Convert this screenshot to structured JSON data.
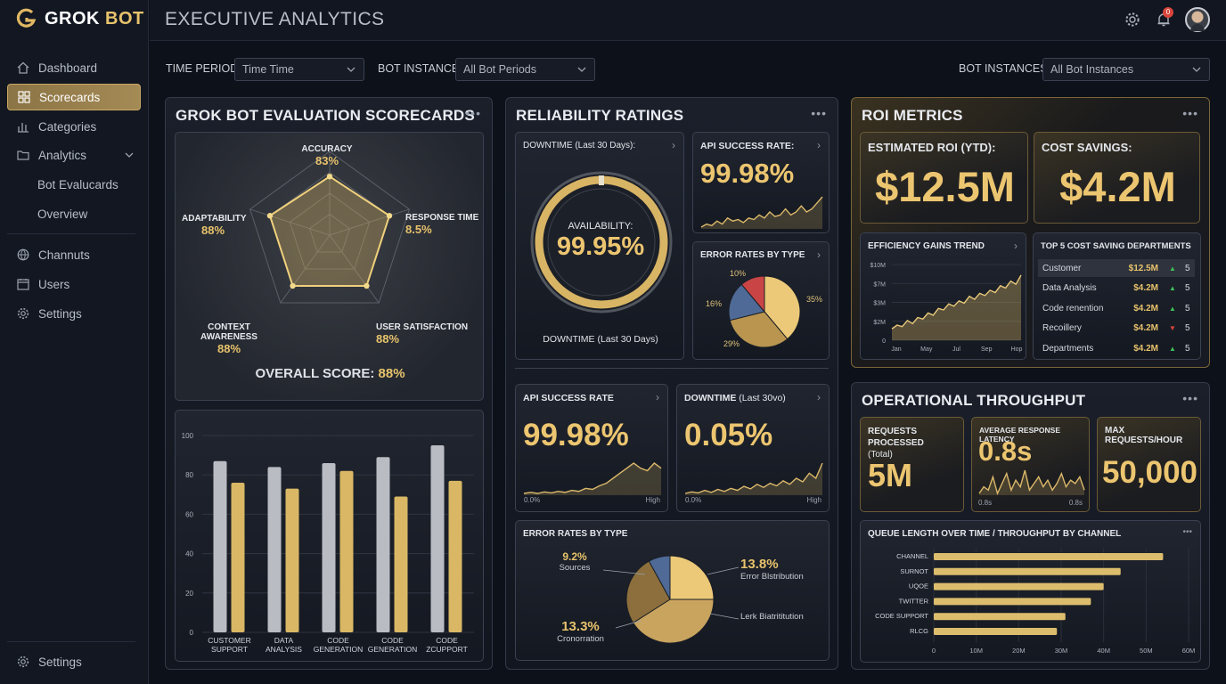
{
  "app": {
    "logo_prefix": "GROK",
    "logo_suffix": "BOT",
    "page_title": "EXECUTIVE ANALYTICS",
    "notification_count": "0"
  },
  "sidebar": {
    "items": [
      {
        "label": "Dashboard",
        "icon": "home-icon"
      },
      {
        "label": "Scorecards",
        "icon": "grid-icon",
        "active": true
      },
      {
        "label": "Categories",
        "icon": "bar-chart-icon"
      },
      {
        "label": "Analytics",
        "icon": "folder-icon"
      },
      {
        "label": "Bot Evalucards",
        "sub": true
      },
      {
        "label": "Overview",
        "sub": true
      },
      {
        "label": "Channuts",
        "icon": "globe-icon"
      },
      {
        "label": "Users",
        "icon": "calendar-icon"
      },
      {
        "label": "Settings",
        "icon": "gear-icon"
      }
    ],
    "bottom_label": "Settings"
  },
  "filters": {
    "time_period_label": "TIME PERIOD",
    "time_period_value": "Time Time",
    "bot_instance_label": "BOT INSTANCE",
    "bot_instance_value": "All Bot Periods",
    "bot_instances_label": "BOT INSTANCES",
    "bot_instances_value": "All Bot Instances"
  },
  "scorecard": {
    "title": "GROK BOT EVALUATION SCORECARDS",
    "radar": [
      {
        "label": "ACCURACY",
        "value": "83%"
      },
      {
        "label": "RESPONSE TIME",
        "value": "8.5%"
      },
      {
        "label": "USER SATISFACTION",
        "value": "88%"
      },
      {
        "label": "CONTEXT AWARENESS",
        "value": "88%"
      },
      {
        "label": "ADAPTABILITY",
        "value": "88%"
      }
    ],
    "radar_levels": [
      0.7,
      0.75,
      0.75,
      0.75,
      0.75
    ],
    "overall_label": "OVERALL SCORE:",
    "overall_value": "88%"
  },
  "chart_data": {
    "type": "bar",
    "categories": [
      "CUSTOMER SUPPORT",
      "DATA ANALYSIS",
      "CODE GENERATION",
      "CODE GENERATION",
      "CODE ZCUPPORT"
    ],
    "series": [
      {
        "values": [
          87,
          84,
          86,
          89,
          95
        ]
      },
      {
        "values": [
          76,
          73,
          82,
          69,
          77
        ]
      }
    ],
    "ylim": [
      0,
      100
    ],
    "yticks": [
      0,
      20,
      40,
      60,
      80,
      100
    ],
    "colors": [
      "#b9bcc2",
      "#d9b765"
    ]
  },
  "reliability": {
    "title": "RELIABILITY RATINGS",
    "downtime_label": "DOWNTIME (Last 30 Days):",
    "availability_label": "AVAILABILITY:",
    "availability_value": "99.95%",
    "downtime_footer": "DOWNTIME (Last 30 Days)",
    "api_label": "API SUCCESS RATE:",
    "api_value": "99.98%",
    "error_label": "ERROR RATES BY TYPE",
    "error_pie": [
      {
        "label": "10%",
        "value": 10,
        "color": "#c94545"
      },
      {
        "label": "35%",
        "value": 35,
        "color": "#ecc978"
      },
      {
        "label": "29%",
        "value": 29,
        "color": "#b99550"
      },
      {
        "label": "16%",
        "value": 16,
        "color": "#4f6a96"
      }
    ],
    "api2_label": "API SUCCESS RATE",
    "api2_value": "99.98%",
    "api2_axis_min": "0.0%",
    "api2_axis_max": "High",
    "downtime2_label": "DOWNTIME",
    "downtime2_suffix": "(Last 30vo)",
    "downtime2_value": "0.05%",
    "downtime2_axis_min": "0.0%",
    "downtime2_axis_max": "High",
    "error2_label": "ERROR RATES BY TYPE",
    "error2_pie": [
      {
        "value": 25,
        "color": "#ecc978"
      },
      {
        "value": 41,
        "color": "#c9a45e"
      },
      {
        "value": 26,
        "color": "#8c6f3c"
      },
      {
        "value": 8,
        "color": "#4f6a96"
      }
    ],
    "error2_callouts": [
      {
        "value": "9.2%",
        "label": "Sources"
      },
      {
        "value": "13.8%",
        "label": "Error Blstribution"
      },
      {
        "value": "",
        "label": "Lerk Biatrititution"
      },
      {
        "value": "13.3%",
        "label": "Cronorration"
      }
    ]
  },
  "roi": {
    "title": "ROI METRICS",
    "roi_label": "ESTIMATED ROI (YTD):",
    "roi_value": "$12.5M",
    "savings_label": "COST SAVINGS:",
    "savings_value": "$4.2M",
    "trend_label": "EFFICIENCY GAINS TREND",
    "trend_y": [
      "$10M",
      "$7M",
      "$3M",
      "$2M",
      "0"
    ],
    "trend_x": [
      "Jan",
      "May",
      "Jul",
      "Sep",
      "Hop"
    ],
    "trend_values": [
      1.5,
      2,
      1.8,
      2.6,
      2.2,
      3,
      2.8,
      3.6,
      3.3,
      4.2,
      4,
      4.8,
      4.5,
      5.2,
      4.9,
      5.8,
      5.4,
      6.2,
      5.9,
      6.6,
      6.3,
      7.2,
      6.9,
      7.8,
      7.4,
      8.6
    ],
    "top5_label": "TOP 5 COST SAVING DEPARTMENTS",
    "top5": [
      {
        "name": "Customer",
        "value": "$12.5M",
        "trend": "up",
        "rank": "5"
      },
      {
        "name": "Data Analysis",
        "value": "$4.2M",
        "trend": "up",
        "rank": "5"
      },
      {
        "name": "Code renention",
        "value": "$4.2M",
        "trend": "up",
        "rank": "5"
      },
      {
        "name": "Recoillery",
        "value": "$4.2M",
        "trend": "down",
        "rank": "5"
      },
      {
        "name": "Departments",
        "value": "$4.2M",
        "trend": "up",
        "rank": "5"
      }
    ]
  },
  "throughput": {
    "title": "OPERATIONAL THROUGHPUT",
    "requests_label": "REQUESTS PROCESSED",
    "requests_sub": "(Total)",
    "requests_value": "5M",
    "latency_label": "AVERAGE RESPONSE LATENCY",
    "latency_value": "0.8s",
    "latency_axis_min": "0.8s",
    "latency_axis_max": "0.8s",
    "max_label": "MAX REQUESTS/HOUR",
    "max_value": "50,000",
    "queue_label": "QUEUE LENGTH OVER TIME / THROUGHPUT BY CHANNEL",
    "channels": [
      {
        "name": "CHANNEL",
        "value": 54
      },
      {
        "name": "SURNOT",
        "value": 44
      },
      {
        "name": "UQOE",
        "value": 40
      },
      {
        "name": "TWITTER",
        "value": 37
      },
      {
        "name": "CODE SUPPORT",
        "value": 31
      },
      {
        "name": "RLCG",
        "value": 29
      }
    ],
    "x_ticks": [
      "0",
      "10M",
      "20M",
      "30M",
      "40M",
      "50M",
      "60M"
    ],
    "xmax": 60
  }
}
